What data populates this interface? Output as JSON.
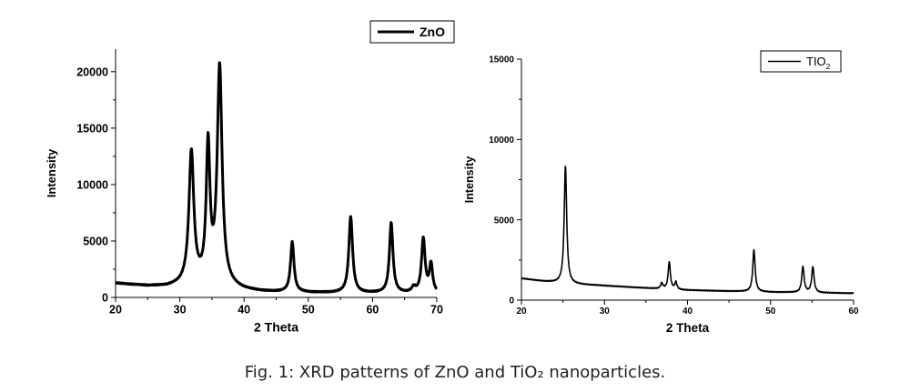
{
  "caption": "Fig. 1: XRD patterns of ZnO and TiO₂ nanoparticles.",
  "chart_data": [
    {
      "type": "line",
      "title": "",
      "xlabel": "2 Theta",
      "ylabel": "Intensity",
      "xlim": [
        20,
        70
      ],
      "ylim": [
        0,
        22000
      ],
      "xticks": [
        20,
        30,
        40,
        50,
        60,
        70
      ],
      "yticks": [
        0,
        5000,
        10000,
        15000,
        20000
      ],
      "grid": false,
      "legend": "top-right",
      "series": [
        {
          "name": "ZnO",
          "line_width": 3,
          "background": [
            [
              20,
              1250
            ],
            [
              25,
              1000
            ],
            [
              28,
              950
            ],
            [
              30,
              1050
            ],
            [
              31,
              1150
            ],
            [
              33,
              1200
            ],
            [
              37,
              1000
            ],
            [
              40,
              650
            ],
            [
              43,
              500
            ],
            [
              47,
              450
            ],
            [
              50,
              420
            ],
            [
              53,
              400
            ],
            [
              56,
              380
            ],
            [
              60,
              370
            ],
            [
              64,
              360
            ],
            [
              67,
              360
            ],
            [
              70,
              360
            ]
          ],
          "peaks": [
            {
              "x": 31.8,
              "height": 11600,
              "width": 0.45
            },
            {
              "x": 34.4,
              "height": 12000,
              "width": 0.35
            },
            {
              "x": 36.2,
              "height": 19200,
              "width": 0.45
            },
            {
              "x": 47.5,
              "height": 4450,
              "width": 0.32
            },
            {
              "x": 56.6,
              "height": 6750,
              "width": 0.35
            },
            {
              "x": 62.9,
              "height": 6200,
              "width": 0.33
            },
            {
              "x": 66.4,
              "height": 450,
              "width": 0.35
            },
            {
              "x": 67.9,
              "height": 4800,
              "width": 0.33
            },
            {
              "x": 69.1,
              "height": 2500,
              "width": 0.3
            }
          ]
        }
      ]
    },
    {
      "type": "line",
      "title": "",
      "xlabel": "2 Theta",
      "ylabel": "Intensity",
      "xlim": [
        20,
        60
      ],
      "ylim": [
        0,
        15000
      ],
      "xticks": [
        20,
        30,
        40,
        50,
        60
      ],
      "yticks": [
        0,
        5000,
        10000,
        15000
      ],
      "grid": false,
      "legend": "top-right",
      "series": [
        {
          "name": "TIO",
          "name_subscript": "2",
          "line_width": 1.6,
          "background": [
            [
              20,
              1350
            ],
            [
              23,
              1150
            ],
            [
              26,
              1000
            ],
            [
              30,
              900
            ],
            [
              35,
              750
            ],
            [
              40,
              620
            ],
            [
              45,
              560
            ],
            [
              50,
              500
            ],
            [
              55,
              460
            ],
            [
              60,
              430
            ]
          ],
          "peaks": [
            {
              "x": 25.3,
              "height": 7300,
              "width": 0.18
            },
            {
              "x": 36.9,
              "height": 350,
              "width": 0.15
            },
            {
              "x": 37.8,
              "height": 1700,
              "width": 0.16
            },
            {
              "x": 38.6,
              "height": 450,
              "width": 0.15
            },
            {
              "x": 48.0,
              "height": 2600,
              "width": 0.17
            },
            {
              "x": 53.9,
              "height": 1600,
              "width": 0.17
            },
            {
              "x": 55.1,
              "height": 1600,
              "width": 0.17
            }
          ]
        }
      ]
    }
  ]
}
